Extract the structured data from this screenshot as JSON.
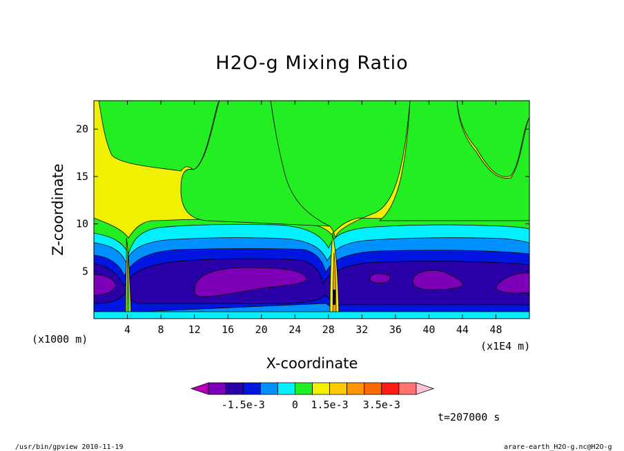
{
  "chart_data": {
    "type": "heatmap",
    "title": "H2O-g Mixing Ratio",
    "xlabel": "X-coordinate",
    "ylabel": "Z-coordinate",
    "x_unit": "(x1000 m)",
    "x_scale_note": "(x1E4 m)",
    "xlim": [
      0,
      52
    ],
    "ylim": [
      0,
      23
    ],
    "x_ticks": [
      "4",
      "8",
      "12",
      "16",
      "20",
      "24",
      "28",
      "32",
      "36",
      "40",
      "44",
      "48"
    ],
    "y_ticks": [
      "5",
      "10",
      "15",
      "20"
    ],
    "colorbar": {
      "colors": [
        "#b300b3",
        "#7d00b8",
        "#2a00a8",
        "#0016e0",
        "#0090ff",
        "#00f0ff",
        "#22ee22",
        "#f0f000",
        "#ffc800",
        "#ff9600",
        "#ff6a00",
        "#ff1a1a",
        "#ff7373",
        "#ffc2d5"
      ],
      "labels": [
        "-1.5e-3",
        "0",
        "1.5e-3",
        "3.5e-3"
      ]
    },
    "annotation": "t=207000 s"
  },
  "footer": {
    "left": "/usr/bin/gpview   2010-11-19",
    "right": "arare-earth_H2O-g.nc@H2O-g"
  }
}
